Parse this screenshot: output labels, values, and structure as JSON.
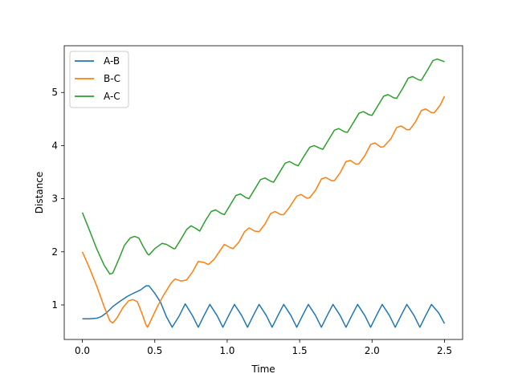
{
  "chart_data": {
    "type": "line",
    "xlabel": "Time",
    "ylabel": "Distance",
    "xlim": [
      -0.125,
      2.625
    ],
    "ylim": [
      0.35,
      5.88
    ],
    "xticks": [
      0.0,
      0.5,
      1.0,
      1.5,
      2.0,
      2.5
    ],
    "xtick_labels": [
      "0.0",
      "0.5",
      "1.0",
      "1.5",
      "2.0",
      "2.5"
    ],
    "yticks": [
      1,
      2,
      3,
      4,
      5
    ],
    "ytick_labels": [
      "1",
      "2",
      "3",
      "4",
      "5"
    ],
    "grid": false,
    "legend_position": "top-left",
    "series": [
      {
        "name": "A-B",
        "color": "#1f77b4",
        "points": [
          [
            0.0,
            0.74
          ],
          [
            0.05,
            0.74
          ],
          [
            0.1,
            0.75
          ],
          [
            0.13,
            0.78
          ],
          [
            0.17,
            0.86
          ],
          [
            0.21,
            0.97
          ],
          [
            0.26,
            1.07
          ],
          [
            0.31,
            1.16
          ],
          [
            0.36,
            1.23
          ],
          [
            0.4,
            1.28
          ],
          [
            0.44,
            1.36
          ],
          [
            0.46,
            1.36
          ],
          [
            0.5,
            1.22
          ],
          [
            0.54,
            1.05
          ],
          [
            0.58,
            0.78
          ],
          [
            0.62,
            0.58
          ],
          [
            0.67,
            0.8
          ],
          [
            0.71,
            1.02
          ],
          [
            0.76,
            0.8
          ],
          [
            0.8,
            0.58
          ],
          [
            0.84,
            0.8
          ],
          [
            0.88,
            1.01
          ],
          [
            0.93,
            0.8
          ],
          [
            0.97,
            0.58
          ],
          [
            1.01,
            0.8
          ],
          [
            1.05,
            1.01
          ],
          [
            1.1,
            0.8
          ],
          [
            1.14,
            0.58
          ],
          [
            1.18,
            0.8
          ],
          [
            1.22,
            1.01
          ],
          [
            1.27,
            0.8
          ],
          [
            1.31,
            0.58
          ],
          [
            1.35,
            0.8
          ],
          [
            1.39,
            1.01
          ],
          [
            1.44,
            0.8
          ],
          [
            1.48,
            0.58
          ],
          [
            1.52,
            0.8
          ],
          [
            1.56,
            1.01
          ],
          [
            1.61,
            0.8
          ],
          [
            1.65,
            0.58
          ],
          [
            1.69,
            0.8
          ],
          [
            1.73,
            1.01
          ],
          [
            1.78,
            0.8
          ],
          [
            1.82,
            0.58
          ],
          [
            1.86,
            0.8
          ],
          [
            1.9,
            1.01
          ],
          [
            1.95,
            0.8
          ],
          [
            1.99,
            0.58
          ],
          [
            2.03,
            0.8
          ],
          [
            2.07,
            1.01
          ],
          [
            2.12,
            0.8
          ],
          [
            2.16,
            0.58
          ],
          [
            2.2,
            0.8
          ],
          [
            2.24,
            1.01
          ],
          [
            2.29,
            0.8
          ],
          [
            2.33,
            0.58
          ],
          [
            2.37,
            0.8
          ],
          [
            2.41,
            1.01
          ],
          [
            2.46,
            0.85
          ],
          [
            2.5,
            0.65
          ]
        ]
      },
      {
        "name": "B-C",
        "color": "#ff7f0e",
        "points": [
          [
            0.0,
            2.0
          ],
          [
            0.05,
            1.69
          ],
          [
            0.1,
            1.35
          ],
          [
            0.15,
            0.97
          ],
          [
            0.19,
            0.7
          ],
          [
            0.21,
            0.66
          ],
          [
            0.24,
            0.76
          ],
          [
            0.28,
            0.95
          ],
          [
            0.32,
            1.08
          ],
          [
            0.35,
            1.1
          ],
          [
            0.38,
            1.06
          ],
          [
            0.41,
            0.85
          ],
          [
            0.44,
            0.62
          ],
          [
            0.45,
            0.58
          ],
          [
            0.48,
            0.75
          ],
          [
            0.52,
            0.98
          ],
          [
            0.56,
            1.18
          ],
          [
            0.61,
            1.4
          ],
          [
            0.64,
            1.49
          ],
          [
            0.68,
            1.45
          ],
          [
            0.72,
            1.47
          ],
          [
            0.76,
            1.62
          ],
          [
            0.8,
            1.82
          ],
          [
            0.84,
            1.8
          ],
          [
            0.87,
            1.76
          ],
          [
            0.91,
            1.86
          ],
          [
            0.95,
            2.02
          ],
          [
            0.98,
            2.14
          ],
          [
            1.02,
            2.08
          ],
          [
            1.04,
            2.06
          ],
          [
            1.08,
            2.18
          ],
          [
            1.12,
            2.38
          ],
          [
            1.15,
            2.45
          ],
          [
            1.19,
            2.39
          ],
          [
            1.22,
            2.38
          ],
          [
            1.26,
            2.52
          ],
          [
            1.3,
            2.72
          ],
          [
            1.33,
            2.76
          ],
          [
            1.37,
            2.7
          ],
          [
            1.39,
            2.7
          ],
          [
            1.43,
            2.84
          ],
          [
            1.48,
            3.05
          ],
          [
            1.51,
            3.08
          ],
          [
            1.55,
            3.01
          ],
          [
            1.57,
            3.02
          ],
          [
            1.61,
            3.16
          ],
          [
            1.65,
            3.37
          ],
          [
            1.68,
            3.4
          ],
          [
            1.72,
            3.34
          ],
          [
            1.74,
            3.34
          ],
          [
            1.78,
            3.49
          ],
          [
            1.82,
            3.7
          ],
          [
            1.85,
            3.72
          ],
          [
            1.89,
            3.65
          ],
          [
            1.91,
            3.66
          ],
          [
            1.95,
            3.81
          ],
          [
            1.99,
            4.02
          ],
          [
            2.02,
            4.05
          ],
          [
            2.06,
            3.97
          ],
          [
            2.08,
            3.98
          ],
          [
            2.13,
            4.13
          ],
          [
            2.17,
            4.34
          ],
          [
            2.2,
            4.37
          ],
          [
            2.24,
            4.3
          ],
          [
            2.26,
            4.3
          ],
          [
            2.3,
            4.45
          ],
          [
            2.34,
            4.66
          ],
          [
            2.37,
            4.69
          ],
          [
            2.41,
            4.62
          ],
          [
            2.43,
            4.62
          ],
          [
            2.47,
            4.76
          ],
          [
            2.5,
            4.93
          ]
        ]
      },
      {
        "name": "A-C",
        "color": "#2ca02c",
        "points": [
          [
            0.0,
            2.74
          ],
          [
            0.05,
            2.4
          ],
          [
            0.1,
            2.05
          ],
          [
            0.15,
            1.75
          ],
          [
            0.19,
            1.58
          ],
          [
            0.21,
            1.6
          ],
          [
            0.25,
            1.85
          ],
          [
            0.29,
            2.12
          ],
          [
            0.33,
            2.26
          ],
          [
            0.36,
            2.29
          ],
          [
            0.39,
            2.26
          ],
          [
            0.42,
            2.1
          ],
          [
            0.45,
            1.96
          ],
          [
            0.46,
            1.94
          ],
          [
            0.5,
            2.06
          ],
          [
            0.55,
            2.16
          ],
          [
            0.58,
            2.14
          ],
          [
            0.63,
            2.06
          ],
          [
            0.64,
            2.06
          ],
          [
            0.67,
            2.19
          ],
          [
            0.72,
            2.42
          ],
          [
            0.75,
            2.49
          ],
          [
            0.79,
            2.43
          ],
          [
            0.81,
            2.39
          ],
          [
            0.85,
            2.59
          ],
          [
            0.89,
            2.76
          ],
          [
            0.92,
            2.79
          ],
          [
            0.96,
            2.72
          ],
          [
            0.98,
            2.7
          ],
          [
            1.02,
            2.88
          ],
          [
            1.06,
            3.06
          ],
          [
            1.09,
            3.09
          ],
          [
            1.13,
            3.02
          ],
          [
            1.15,
            3.0
          ],
          [
            1.19,
            3.18
          ],
          [
            1.23,
            3.36
          ],
          [
            1.26,
            3.39
          ],
          [
            1.3,
            3.33
          ],
          [
            1.32,
            3.31
          ],
          [
            1.36,
            3.49
          ],
          [
            1.4,
            3.67
          ],
          [
            1.43,
            3.7
          ],
          [
            1.47,
            3.64
          ],
          [
            1.49,
            3.62
          ],
          [
            1.53,
            3.8
          ],
          [
            1.57,
            3.97
          ],
          [
            1.6,
            4.0
          ],
          [
            1.64,
            3.95
          ],
          [
            1.66,
            3.93
          ],
          [
            1.7,
            4.11
          ],
          [
            1.74,
            4.29
          ],
          [
            1.77,
            4.32
          ],
          [
            1.81,
            4.26
          ],
          [
            1.83,
            4.25
          ],
          [
            1.87,
            4.43
          ],
          [
            1.91,
            4.61
          ],
          [
            1.94,
            4.64
          ],
          [
            1.98,
            4.58
          ],
          [
            2.0,
            4.57
          ],
          [
            2.04,
            4.75
          ],
          [
            2.08,
            4.93
          ],
          [
            2.11,
            4.96
          ],
          [
            2.15,
            4.9
          ],
          [
            2.17,
            4.89
          ],
          [
            2.21,
            5.07
          ],
          [
            2.25,
            5.27
          ],
          [
            2.28,
            5.3
          ],
          [
            2.32,
            5.24
          ],
          [
            2.34,
            5.23
          ],
          [
            2.38,
            5.41
          ],
          [
            2.42,
            5.6
          ],
          [
            2.45,
            5.63
          ],
          [
            2.48,
            5.6
          ],
          [
            2.5,
            5.58
          ]
        ]
      }
    ]
  }
}
